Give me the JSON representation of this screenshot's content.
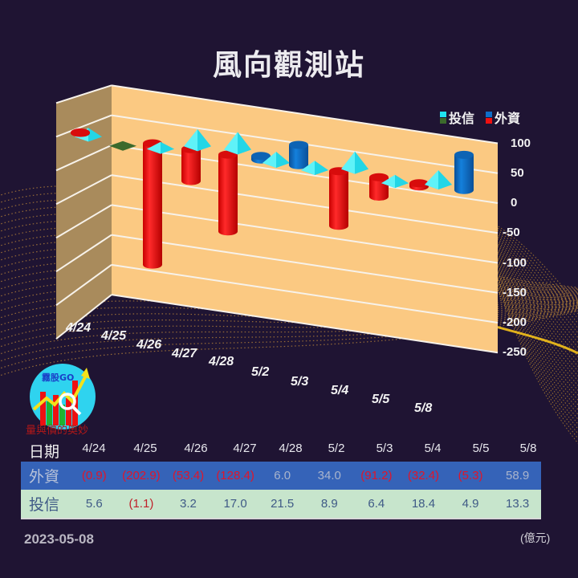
{
  "title": "風向觀測站",
  "legend": {
    "trust": {
      "label": "投信",
      "pos_color": "#1fe3f0",
      "neg_color": "#3c6a2c"
    },
    "foreign": {
      "label": "外資",
      "pos_color": "#0f6ec7",
      "neg_color": "#ee1010"
    }
  },
  "y_ticks": [
    "100",
    "50",
    "0",
    "-50",
    "-100",
    "-150",
    "-200",
    "-250"
  ],
  "x_ticks": [
    "4/24",
    "4/25",
    "4/26",
    "4/27",
    "4/28",
    "5/2",
    "5/3",
    "5/4",
    "5/5",
    "5/8"
  ],
  "table": {
    "header_label": "日期",
    "dates": [
      "4/24",
      "4/25",
      "4/26",
      "4/27",
      "4/28",
      "5/2",
      "5/3",
      "5/4",
      "5/5",
      "5/8"
    ],
    "foreign": {
      "label": "外資",
      "values": [
        "(0.9)",
        "(202.9)",
        "(53.4)",
        "(128.4)",
        "6.0",
        "34.0",
        "(91.2)",
        "(32.4)",
        "(5.3)",
        "58.9"
      ]
    },
    "trust": {
      "label": "投信",
      "values": [
        "5.6",
        "(1.1)",
        "3.2",
        "17.0",
        "21.5",
        "8.9",
        "6.4",
        "18.4",
        "4.9",
        "13.3"
      ]
    }
  },
  "footer": {
    "date": "2023-05-08",
    "unit": "(億元)"
  },
  "logo": {
    "brand": "霧股GO",
    "tagline": "量與價的奧妙"
  },
  "colors": {
    "background": "#1f1433",
    "wall": "#fbc982",
    "side_wall": "#a98b5c",
    "foreign_row": "#3563b8",
    "trust_row": "#c7e5cc",
    "negative_text": "#e0152a"
  },
  "chart_data": {
    "type": "bar",
    "title": "風向觀測站",
    "categories": [
      "4/24",
      "4/25",
      "4/26",
      "4/27",
      "4/28",
      "5/2",
      "5/3",
      "5/4",
      "5/5",
      "5/8"
    ],
    "series": [
      {
        "name": "外資",
        "values": [
          -0.9,
          -202.9,
          -53.4,
          -128.4,
          6.0,
          34.0,
          -91.2,
          -32.4,
          -5.3,
          58.9
        ],
        "shape": "cylinder"
      },
      {
        "name": "投信",
        "values": [
          5.6,
          -1.1,
          3.2,
          17.0,
          21.5,
          8.9,
          6.4,
          18.4,
          4.9,
          13.3
        ],
        "shape": "pyramid"
      }
    ],
    "xlabel": "",
    "ylabel": "",
    "unit": "億元",
    "ylim": [
      -250,
      100
    ],
    "y_ticks": [
      100,
      50,
      0,
      -50,
      -100,
      -150,
      -200,
      -250
    ],
    "grid": true,
    "legend_position": "top-right",
    "style": "3d"
  }
}
